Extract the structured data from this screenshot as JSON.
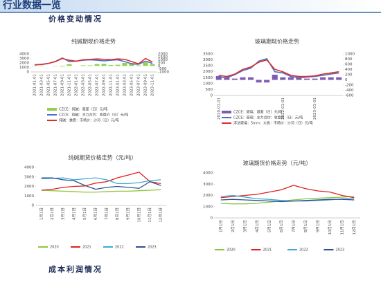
{
  "header": {
    "title": "行业数据一览"
  },
  "sections": [
    "价格变动情况",
    "成本利润情况"
  ],
  "chart_data": [
    {
      "type": "combo",
      "title": "纯碱期现价格走势",
      "categories": [
        "2021-01-01",
        "2021-03-01",
        "2021-05-01",
        "2021-07-01",
        "2021-09-01",
        "2021-11-01",
        "2022-01-01",
        "2022-03-01",
        "2022-05-01",
        "2022-07-01",
        "2022-09-01",
        "2022-11-01",
        "2023-01-01",
        "2023-03-01",
        "2023-05-01",
        "2023-07-01",
        "2023-09-01",
        "2023-11-01"
      ],
      "ylim": [
        0,
        4000
      ],
      "yticks": [
        0,
        1000,
        2000,
        3000,
        4000
      ],
      "y2lim": [
        -1000,
        2000
      ],
      "y2ticks": [
        -1000,
        -500,
        0,
        500,
        1000,
        1500,
        2000
      ],
      "grid": false,
      "series": [
        {
          "name": "CZCE：纯碱：基差（日）元/吨",
          "type": "bar",
          "axis": "y2",
          "color": "#8fd14f",
          "values": [
            50,
            -50,
            0,
            -50,
            -100,
            300,
            0,
            100,
            100,
            300,
            350,
            150,
            200,
            500,
            500,
            100,
            600,
            300
          ]
        },
        {
          "name": "CZCE：纯碱：主力合约：收盘价（日）元/吨",
          "type": "line",
          "color": "#4a6fc7",
          "values": [
            1550,
            1700,
            1900,
            2350,
            3100,
            2300,
            2400,
            2600,
            2700,
            2600,
            2450,
            2600,
            2700,
            2300,
            1800,
            1700,
            2400,
            1900
          ]
        },
        {
          "name": "纯碱：重质：市场价：沙河（日）元/吨",
          "type": "line",
          "color": "#d9302c",
          "values": [
            1600,
            1650,
            1900,
            2300,
            3000,
            2600,
            2400,
            2700,
            2800,
            2900,
            2800,
            2750,
            2900,
            2800,
            2300,
            1800,
            3000,
            2200
          ]
        }
      ]
    },
    {
      "type": "combo",
      "title": "玻璃期现价格走势",
      "categories": [
        "2020-01-01",
        null,
        null,
        null,
        null,
        null,
        null,
        null,
        "2022-01-01",
        null,
        null,
        null,
        "2023-01-01",
        null,
        null,
        null
      ],
      "ylim": [
        0,
        3500
      ],
      "yticks": [
        0,
        500,
        1000,
        1500,
        2000,
        2500,
        3000,
        3500
      ],
      "y2lim": [
        -600,
        1000
      ],
      "y2ticks": [
        -600,
        -400,
        -200,
        0,
        200,
        400,
        600,
        800,
        1000
      ],
      "grid": false,
      "series": [
        {
          "name": "CZCE：玻璃：基差（日）元/吨",
          "type": "bar",
          "axis": "y2",
          "color": "#7e5bb5",
          "values": [
            150,
            100,
            50,
            100,
            100,
            -100,
            -100,
            200,
            100,
            100,
            100,
            50,
            50,
            100,
            100,
            100
          ]
        },
        {
          "name": "CZCE：玻璃：主力合约：收盘价（日）元/吨",
          "type": "line",
          "color": "#4a6fc7",
          "values": [
            1550,
            1500,
            1750,
            2100,
            2300,
            2900,
            3100,
            2000,
            1900,
            1600,
            1500,
            1550,
            1600,
            1700,
            1800,
            1900
          ]
        },
        {
          "name": "浮法玻璃：5mm：大板：市场价：沙河（日）元/吨",
          "type": "line",
          "color": "#d9302c",
          "values": [
            1700,
            1600,
            1800,
            2200,
            2400,
            2800,
            3000,
            2200,
            2000,
            1700,
            1600,
            1600,
            1650,
            1800,
            1900,
            2000
          ]
        }
      ]
    },
    {
      "type": "line",
      "title": "纯碱期货价格走势（元/吨）",
      "categories": [
        "1月1日",
        "2月1日",
        "3月1日",
        "4月1日",
        "5月1日",
        "6月1日",
        "7月1日",
        "8月1日",
        "9月1日",
        "10月1日",
        "11月1日",
        "12月1日"
      ],
      "ylim": [
        0,
        4000
      ],
      "yticks": [
        0,
        1000,
        2000,
        3000,
        4000
      ],
      "grid": false,
      "series": [
        {
          "name": "2020",
          "color": "#8fc43f",
          "values": [
            1600,
            1550,
            1500,
            1450,
            1400,
            1400,
            1450,
            1500,
            1500,
            1550,
            1600,
            1650
          ]
        },
        {
          "name": "2021",
          "color": "#e0201b",
          "values": [
            1600,
            1700,
            1900,
            2000,
            2050,
            2350,
            2500,
            2900,
            3200,
            3500,
            2500,
            2300
          ]
        },
        {
          "name": "2022",
          "color": "#3fa9d6",
          "values": [
            2800,
            2850,
            2900,
            2700,
            2800,
            2900,
            2700,
            2300,
            2300,
            2400,
            2600,
            2700
          ]
        },
        {
          "name": "2023",
          "color": "#2f4f8f",
          "values": [
            2900,
            2900,
            2700,
            2600,
            2100,
            1700,
            1900,
            2000,
            1900,
            1800,
            2500,
            2100
          ]
        }
      ]
    },
    {
      "type": "line",
      "title": "玻璃期货价格走势（元/吨）",
      "categories": [
        "1月1日",
        "2月1日",
        "3月1日",
        "4月1日",
        "5月1日",
        "6月1日",
        "7月1日",
        "8月1日",
        "9月1日",
        "10月1日",
        "11月1日",
        "12月1日"
      ],
      "ylim": [
        0,
        4000
      ],
      "yticks": [
        0,
        1000,
        2000,
        3000,
        4000
      ],
      "grid": false,
      "series": [
        {
          "name": "2020",
          "color": "#8fc43f",
          "values": [
            1300,
            1250,
            1250,
            1300,
            1400,
            1500,
            1600,
            1700,
            1750,
            1800,
            1850,
            1900
          ]
        },
        {
          "name": "2021",
          "color": "#e0201b",
          "values": [
            1800,
            1900,
            2000,
            2100,
            2300,
            2500,
            2900,
            2600,
            2400,
            2300,
            2000,
            1800
          ]
        },
        {
          "name": "2022",
          "color": "#3fa9d6",
          "values": [
            1900,
            2000,
            1850,
            1700,
            1650,
            1550,
            1500,
            1500,
            1550,
            1600,
            1700,
            1700
          ]
        },
        {
          "name": "2023",
          "color": "#2f4f8f",
          "values": [
            1600,
            1650,
            1600,
            1550,
            1500,
            1450,
            1500,
            1550,
            1600,
            1650,
            1650,
            1600
          ]
        }
      ]
    }
  ]
}
